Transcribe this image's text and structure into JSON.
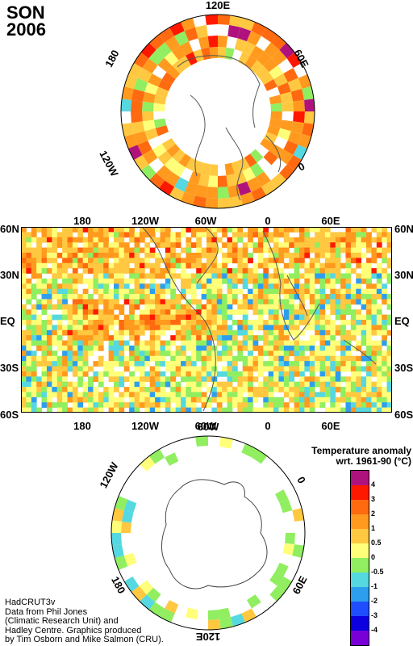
{
  "header": {
    "season": "SON",
    "year": "2006"
  },
  "north_polar": {
    "labels": {
      "top": "120E",
      "right": "60E",
      "right_lower": "0",
      "left": "180",
      "left_lower": "120W"
    }
  },
  "main_map": {
    "top_axis": [
      "180",
      "120W",
      "60W",
      "0",
      "60E"
    ],
    "bottom_axis": [
      "180",
      "120W",
      "60W",
      "0",
      "60E"
    ],
    "left_axis": [
      "60N",
      "30N",
      "EQ",
      "30S",
      "60S"
    ],
    "right_axis": [
      "60N",
      "30N",
      "EQ",
      "30S",
      "60S"
    ]
  },
  "south_polar": {
    "labels": {
      "top": "60W",
      "left": "120W",
      "right": "0",
      "right_lower": "60E",
      "bottom": "120E",
      "left_lower": "180"
    }
  },
  "legend": {
    "title_line1": "Temperature anomaly",
    "title_line2": "wrt. 1961-90  (°C)",
    "ticks": [
      "4",
      "3",
      "2",
      "1",
      "0.5",
      "0",
      "-0.5",
      "-1",
      "-2",
      "-3",
      "-4"
    ],
    "colors": [
      "#b0127d",
      "#ff1800",
      "#ff6a10",
      "#ff9a1e",
      "#ffc840",
      "#ffff7a",
      "#90ee60",
      "#55d8e0",
      "#2d9eee",
      "#1e4eff",
      "#0c00e0",
      "#7a00d8"
    ]
  },
  "credit": {
    "line1": "HadCRUT3v",
    "line2": "Data from Phil Jones",
    "line3": "(Climatic Research Unit) and",
    "line4": "Hadley Centre.  Graphics produced",
    "line5": "by Tim Osborn and Mike Salmon (CRU)."
  }
}
